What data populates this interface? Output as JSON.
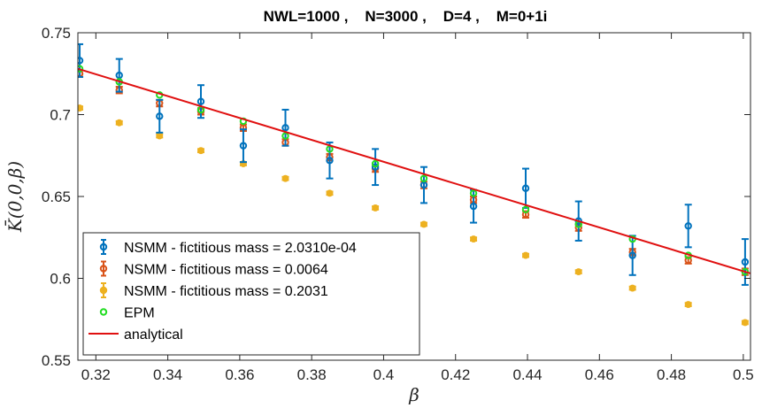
{
  "chart_data": {
    "type": "scatter",
    "title": "NWL=1000 ,    N=3000 ,    D=4 ,    M=0+1i",
    "xlabel": "β",
    "ylabel": "K̄(0,0,β)",
    "xlim": [
      0.315,
      0.502
    ],
    "ylim": [
      0.55,
      0.75
    ],
    "x_ticks": [
      0.32,
      0.34,
      0.36,
      0.38,
      0.4,
      0.42,
      0.44,
      0.46,
      0.48,
      0.5
    ],
    "x_tick_labels": [
      "0.32",
      "0.34",
      "0.36",
      "0.38",
      "0.4",
      "0.42",
      "0.44",
      "0.46",
      "0.48",
      "0.5"
    ],
    "y_ticks": [
      0.55,
      0.6,
      0.65,
      0.7,
      0.75
    ],
    "y_tick_labels": [
      "0.55",
      "0.6",
      "0.65",
      "0.7",
      "0.75"
    ],
    "grid": false,
    "legend_position": "bottom-left",
    "x": [
      0.3155,
      0.3265,
      0.3377,
      0.3492,
      0.361,
      0.3727,
      0.385,
      0.3977,
      0.4112,
      0.425,
      0.4395,
      0.4542,
      0.4692,
      0.4847,
      0.5005
    ],
    "series": [
      {
        "name": "NSMM - fictitious mass = 2.0310e-04",
        "color": "#0072BD",
        "style": "errorbar",
        "values": [
          0.733,
          0.724,
          0.699,
          0.708,
          0.681,
          0.692,
          0.672,
          0.668,
          0.657,
          0.644,
          0.655,
          0.635,
          0.614,
          0.632,
          0.61
        ],
        "errors": [
          0.01,
          0.01,
          0.01,
          0.01,
          0.01,
          0.011,
          0.011,
          0.011,
          0.011,
          0.01,
          0.012,
          0.012,
          0.012,
          0.013,
          0.014
        ]
      },
      {
        "name": "NSMM - fictitious mass = 0.0064",
        "color": "#D95319",
        "style": "errorbar",
        "values": [
          0.725,
          0.715,
          0.707,
          0.702,
          0.692,
          0.683,
          0.674,
          0.667,
          0.657,
          0.648,
          0.639,
          0.631,
          0.616,
          0.611,
          0.604
        ],
        "errors": [
          0.002,
          0.002,
          0.002,
          0.002,
          0.002,
          0.002,
          0.002,
          0.002,
          0.002,
          0.002,
          0.002,
          0.002,
          0.002,
          0.002,
          0.002
        ]
      },
      {
        "name": "NSMM - fictitious mass = 0.2031",
        "color": "#EDB120",
        "style": "errorbar",
        "values": [
          0.704,
          0.695,
          0.687,
          0.678,
          0.67,
          0.661,
          0.652,
          0.643,
          0.633,
          0.624,
          0.614,
          0.604,
          0.594,
          0.584,
          0.573
        ],
        "errors": [
          0.001,
          0.001,
          0.001,
          0.001,
          0.001,
          0.001,
          0.001,
          0.001,
          0.001,
          0.001,
          0.001,
          0.001,
          0.001,
          0.001,
          0.001
        ]
      },
      {
        "name": "EPM",
        "color": "#22DD22",
        "style": "marker",
        "values": [
          0.728,
          0.72,
          0.712,
          0.703,
          0.696,
          0.687,
          0.679,
          0.67,
          0.661,
          0.652,
          0.642,
          0.633,
          0.624,
          0.614,
          0.604
        ]
      },
      {
        "name": "analytical",
        "color": "#E01010",
        "style": "line",
        "line_x": [
          0.315,
          0.502
        ],
        "line_y": [
          0.728,
          0.603
        ]
      }
    ]
  }
}
